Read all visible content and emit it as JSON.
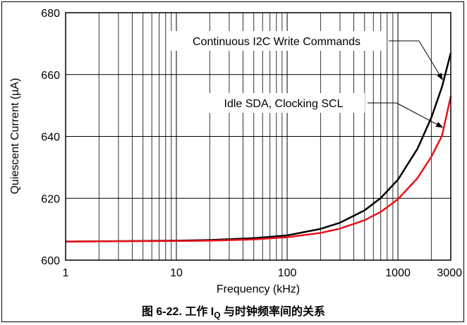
{
  "caption": {
    "prefix": "图 6-22. 工作 I",
    "subscript": "Q",
    "suffix": " 与时钟频率间的关系"
  },
  "chart_data": {
    "type": "line",
    "xlabel": "Frequency (kHz)",
    "ylabel": "Quiescent Current (µA)",
    "xscale": "log",
    "xlim": [
      1,
      3000
    ],
    "ylim": [
      600,
      680
    ],
    "x_ticks": [
      1,
      10,
      100,
      1000,
      3000
    ],
    "x_tick_labels": [
      "1",
      "10",
      "100",
      "1000",
      "3000"
    ],
    "y_ticks": [
      600,
      620,
      640,
      660,
      680
    ],
    "y_tick_labels": [
      "600",
      "620",
      "640",
      "660",
      "680"
    ],
    "grid": true,
    "x": [
      1,
      10,
      20,
      50,
      100,
      200,
      300,
      500,
      700,
      1000,
      1500,
      2000,
      2500,
      3000
    ],
    "series": [
      {
        "name": "Continuous I2C Write Commands",
        "color": "#000000",
        "values": [
          606.0,
          606.3,
          606.5,
          607.1,
          608.0,
          610.1,
          612.1,
          616.1,
          620.1,
          626.0,
          636.0,
          646.0,
          656.0,
          667.0
        ]
      },
      {
        "name": "Idle SDA, Clocking SCL",
        "color": "#e8121b",
        "values": [
          606.0,
          606.2,
          606.3,
          606.7,
          607.4,
          608.8,
          610.2,
          612.9,
          615.6,
          619.7,
          626.5,
          633.4,
          640.2,
          653.0
        ]
      }
    ]
  }
}
